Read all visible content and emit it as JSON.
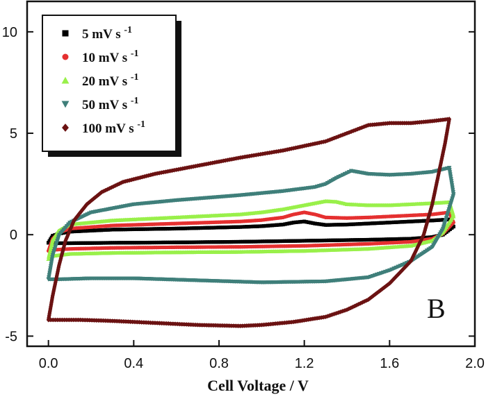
{
  "chart_data": {
    "type": "line",
    "xlabel": "Cell Voltage / V",
    "ylabel": "",
    "xlim": [
      -0.1,
      2.0
    ],
    "ylim": [
      -5.5,
      11.5
    ],
    "x_ticks": [
      0.0,
      0.4,
      0.8,
      1.2,
      1.6,
      2.0
    ],
    "x_tick_labels": [
      "0.0",
      "0.4",
      "0.8",
      "1.2",
      "1.6",
      "2.0"
    ],
    "y_ticks": [
      -5,
      0,
      5,
      10
    ],
    "y_tick_labels": [
      "-5",
      "0",
      "5",
      "10"
    ],
    "panel_label": "B",
    "legend_position": "top-left",
    "grid": false,
    "series": [
      {
        "name": "5 mV s",
        "name_sup": "-1",
        "color": "#000000",
        "marker": "square",
        "forward": [
          [
            0.0,
            -0.4
          ],
          [
            0.02,
            -0.05
          ],
          [
            0.05,
            0.05
          ],
          [
            0.1,
            0.15
          ],
          [
            0.3,
            0.25
          ],
          [
            0.6,
            0.3
          ],
          [
            0.9,
            0.38
          ],
          [
            1.0,
            0.42
          ],
          [
            1.1,
            0.5
          ],
          [
            1.15,
            0.6
          ],
          [
            1.2,
            0.65
          ],
          [
            1.25,
            0.55
          ],
          [
            1.3,
            0.48
          ],
          [
            1.4,
            0.5
          ],
          [
            1.5,
            0.55
          ],
          [
            1.6,
            0.6
          ],
          [
            1.7,
            0.65
          ],
          [
            1.8,
            0.7
          ],
          [
            1.88,
            0.75
          ]
        ],
        "reverse": [
          [
            1.88,
            0.75
          ],
          [
            1.9,
            0.4
          ],
          [
            1.85,
            0.0
          ],
          [
            1.8,
            -0.12
          ],
          [
            1.7,
            -0.2
          ],
          [
            1.5,
            -0.25
          ],
          [
            1.2,
            -0.3
          ],
          [
            0.9,
            -0.35
          ],
          [
            0.6,
            -0.38
          ],
          [
            0.3,
            -0.4
          ],
          [
            0.1,
            -0.42
          ],
          [
            0.02,
            -0.42
          ],
          [
            0.0,
            -0.4
          ]
        ]
      },
      {
        "name": "10 mV s",
        "name_sup": "-1",
        "color": "#e53030",
        "marker": "circle",
        "forward": [
          [
            0.0,
            -0.8
          ],
          [
            0.02,
            -0.2
          ],
          [
            0.05,
            0.1
          ],
          [
            0.1,
            0.3
          ],
          [
            0.3,
            0.45
          ],
          [
            0.6,
            0.55
          ],
          [
            0.9,
            0.65
          ],
          [
            1.0,
            0.72
          ],
          [
            1.1,
            0.85
          ],
          [
            1.15,
            1.0
          ],
          [
            1.2,
            1.1
          ],
          [
            1.25,
            1.0
          ],
          [
            1.3,
            0.85
          ],
          [
            1.4,
            0.82
          ],
          [
            1.5,
            0.85
          ],
          [
            1.6,
            0.9
          ],
          [
            1.7,
            0.95
          ],
          [
            1.8,
            1.0
          ],
          [
            1.88,
            1.1
          ]
        ],
        "reverse": [
          [
            1.88,
            1.1
          ],
          [
            1.9,
            0.6
          ],
          [
            1.85,
            0.05
          ],
          [
            1.8,
            -0.2
          ],
          [
            1.7,
            -0.35
          ],
          [
            1.5,
            -0.45
          ],
          [
            1.2,
            -0.55
          ],
          [
            0.9,
            -0.6
          ],
          [
            0.6,
            -0.62
          ],
          [
            0.3,
            -0.65
          ],
          [
            0.1,
            -0.7
          ],
          [
            0.02,
            -0.75
          ],
          [
            0.0,
            -0.8
          ]
        ]
      },
      {
        "name": "20 mV s",
        "name_sup": "-1",
        "color": "#99f04a",
        "marker": "triangle-up",
        "forward": [
          [
            0.0,
            -1.2
          ],
          [
            0.02,
            -0.3
          ],
          [
            0.05,
            0.2
          ],
          [
            0.1,
            0.5
          ],
          [
            0.3,
            0.7
          ],
          [
            0.6,
            0.85
          ],
          [
            0.9,
            1.0
          ],
          [
            1.0,
            1.1
          ],
          [
            1.1,
            1.25
          ],
          [
            1.2,
            1.45
          ],
          [
            1.3,
            1.65
          ],
          [
            1.35,
            1.62
          ],
          [
            1.4,
            1.5
          ],
          [
            1.5,
            1.45
          ],
          [
            1.6,
            1.45
          ],
          [
            1.7,
            1.5
          ],
          [
            1.8,
            1.55
          ],
          [
            1.88,
            1.6
          ]
        ],
        "reverse": [
          [
            1.88,
            1.6
          ],
          [
            1.9,
            0.9
          ],
          [
            1.85,
            0.1
          ],
          [
            1.8,
            -0.3
          ],
          [
            1.7,
            -0.55
          ],
          [
            1.5,
            -0.7
          ],
          [
            1.2,
            -0.8
          ],
          [
            0.9,
            -0.85
          ],
          [
            0.6,
            -0.87
          ],
          [
            0.3,
            -0.9
          ],
          [
            0.1,
            -0.95
          ],
          [
            0.02,
            -1.05
          ],
          [
            0.0,
            -1.2
          ]
        ]
      },
      {
        "name": "50 mV s",
        "name_sup": "-1",
        "color": "#3f7f7a",
        "marker": "triangle-down",
        "forward": [
          [
            0.0,
            -2.2
          ],
          [
            0.02,
            -1.0
          ],
          [
            0.05,
            0.0
          ],
          [
            0.1,
            0.6
          ],
          [
            0.2,
            1.1
          ],
          [
            0.4,
            1.5
          ],
          [
            0.6,
            1.7
          ],
          [
            0.9,
            1.95
          ],
          [
            1.1,
            2.15
          ],
          [
            1.25,
            2.35
          ],
          [
            1.3,
            2.5
          ],
          [
            1.35,
            2.8
          ],
          [
            1.42,
            3.15
          ],
          [
            1.5,
            3.0
          ],
          [
            1.6,
            2.95
          ],
          [
            1.7,
            3.0
          ],
          [
            1.8,
            3.1
          ],
          [
            1.88,
            3.3
          ]
        ],
        "reverse": [
          [
            1.88,
            3.3
          ],
          [
            1.9,
            2.0
          ],
          [
            1.85,
            0.3
          ],
          [
            1.8,
            -0.6
          ],
          [
            1.7,
            -1.3
          ],
          [
            1.6,
            -1.75
          ],
          [
            1.5,
            -2.1
          ],
          [
            1.3,
            -2.3
          ],
          [
            1.0,
            -2.35
          ],
          [
            0.7,
            -2.25
          ],
          [
            0.4,
            -2.15
          ],
          [
            0.2,
            -2.15
          ],
          [
            0.05,
            -2.2
          ],
          [
            0.0,
            -2.2
          ]
        ]
      },
      {
        "name": "100 mV s",
        "name_sup": "-1",
        "color": "#6b1212",
        "marker": "diamond",
        "forward": [
          [
            0.0,
            -4.2
          ],
          [
            0.02,
            -3.0
          ],
          [
            0.05,
            -1.5
          ],
          [
            0.08,
            -0.3
          ],
          [
            0.12,
            0.7
          ],
          [
            0.18,
            1.5
          ],
          [
            0.25,
            2.1
          ],
          [
            0.35,
            2.6
          ],
          [
            0.5,
            3.0
          ],
          [
            0.7,
            3.4
          ],
          [
            0.9,
            3.8
          ],
          [
            1.1,
            4.15
          ],
          [
            1.3,
            4.6
          ],
          [
            1.4,
            5.0
          ],
          [
            1.5,
            5.4
          ],
          [
            1.6,
            5.5
          ],
          [
            1.7,
            5.5
          ],
          [
            1.8,
            5.6
          ],
          [
            1.88,
            5.7
          ]
        ],
        "reverse": [
          [
            1.88,
            5.7
          ],
          [
            1.86,
            4.5
          ],
          [
            1.83,
            3.0
          ],
          [
            1.8,
            1.5
          ],
          [
            1.76,
            0.0
          ],
          [
            1.7,
            -1.3
          ],
          [
            1.6,
            -2.4
          ],
          [
            1.5,
            -3.2
          ],
          [
            1.4,
            -3.7
          ],
          [
            1.3,
            -4.05
          ],
          [
            1.15,
            -4.3
          ],
          [
            1.0,
            -4.45
          ],
          [
            0.9,
            -4.5
          ],
          [
            0.7,
            -4.45
          ],
          [
            0.5,
            -4.35
          ],
          [
            0.3,
            -4.25
          ],
          [
            0.15,
            -4.2
          ],
          [
            0.0,
            -4.2
          ]
        ]
      }
    ]
  }
}
